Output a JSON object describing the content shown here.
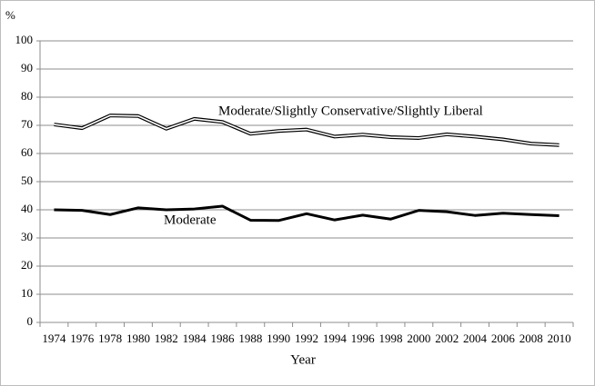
{
  "chart_data": {
    "type": "line",
    "y_label": "%",
    "x_label": "Year",
    "categories": [
      "1974",
      "1976",
      "1978",
      "1980",
      "1982",
      "1984",
      "1986",
      "1988",
      "1990",
      "1992",
      "1994",
      "1996",
      "1998",
      "2000",
      "2002",
      "2004",
      "2006",
      "2008",
      "2010"
    ],
    "series": [
      {
        "name": "Moderate/Slightly Conservative/Slightly Liberal",
        "color": "#ffffff",
        "values": [
          70.3,
          69,
          73.5,
          73.3,
          68.8,
          72.3,
          71.2,
          67,
          68,
          68.5,
          66,
          66.7,
          65.8,
          65.5,
          66.8,
          66,
          65,
          63.5,
          63
        ]
      },
      {
        "name": "Moderate",
        "color": "#000000",
        "values": [
          40,
          39.8,
          38.3,
          40.7,
          40,
          40.3,
          41.3,
          36.3,
          36.2,
          38.6,
          36.4,
          38.1,
          36.7,
          39.8,
          39.3,
          38,
          38.8,
          38.3,
          37.9
        ]
      }
    ],
    "ylim": [
      0,
      100
    ],
    "yticks": [
      0,
      10,
      20,
      30,
      40,
      50,
      60,
      70,
      80,
      90,
      100
    ],
    "grid": true
  }
}
